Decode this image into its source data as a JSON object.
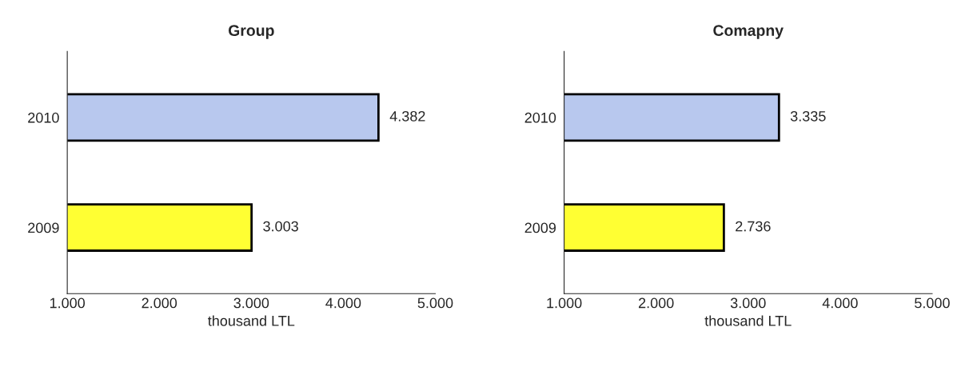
{
  "chart_data": [
    {
      "type": "bar",
      "orientation": "horizontal",
      "title": "Group",
      "xlabel": "thousand LTL",
      "categories": [
        "2010",
        "2009"
      ],
      "values": [
        4382,
        3003
      ],
      "colors": [
        "#b8c8ee",
        "#ffff33"
      ],
      "value_labels": [
        "4.382",
        "3.003"
      ],
      "xlim": [
        1000,
        5000
      ],
      "xticks": [
        {
          "value": 1000,
          "label": "1.000"
        },
        {
          "value": 2000,
          "label": "2.000"
        },
        {
          "value": 3000,
          "label": "3.000"
        },
        {
          "value": 4000,
          "label": "4.000"
        },
        {
          "value": 5000,
          "label": "5.000"
        }
      ],
      "grid": false,
      "legend": false
    },
    {
      "type": "bar",
      "orientation": "horizontal",
      "title": "Comapny",
      "xlabel": "thousand LTL",
      "categories": [
        "2010",
        "2009"
      ],
      "values": [
        3335,
        2736
      ],
      "colors": [
        "#b8c8ee",
        "#ffff33"
      ],
      "value_labels": [
        "3.335",
        "2.736"
      ],
      "xlim": [
        1000,
        5000
      ],
      "xticks": [
        {
          "value": 1000,
          "label": "1.000"
        },
        {
          "value": 2000,
          "label": "2.000"
        },
        {
          "value": 3000,
          "label": "3.000"
        },
        {
          "value": 4000,
          "label": "4.000"
        },
        {
          "value": 5000,
          "label": "5.000"
        }
      ],
      "grid": false,
      "legend": false
    }
  ]
}
